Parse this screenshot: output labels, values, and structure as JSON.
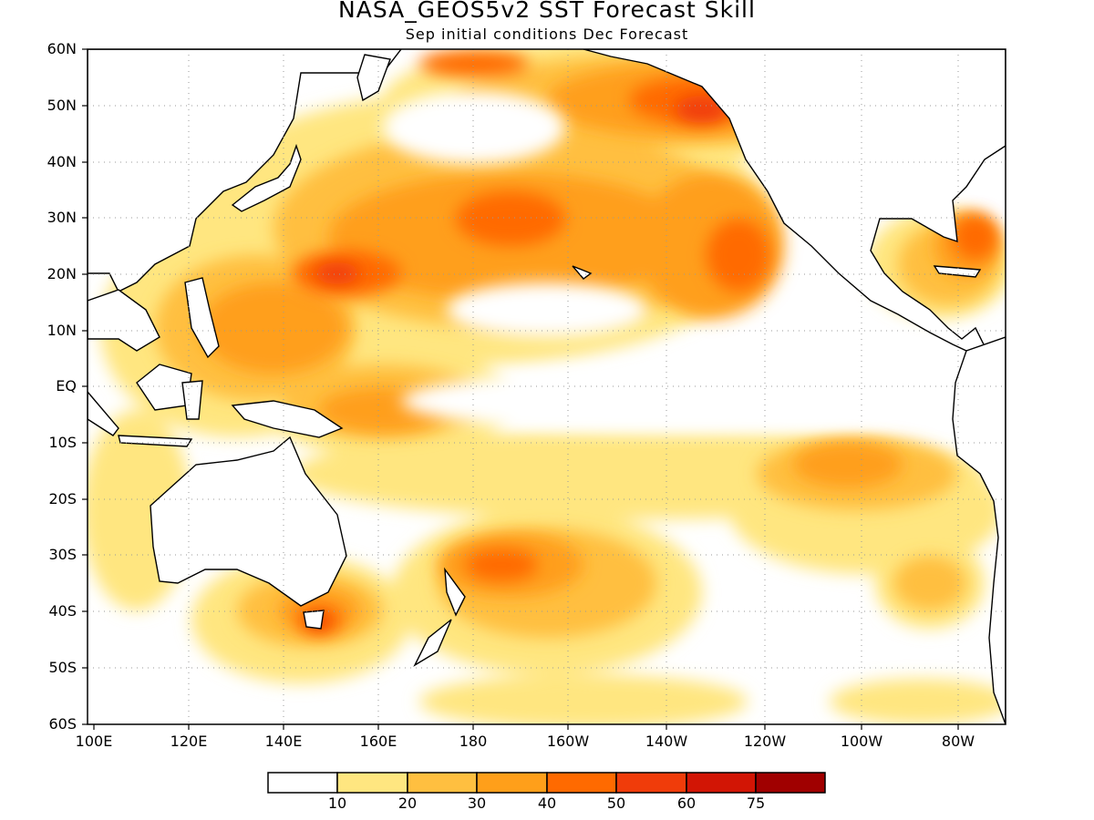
{
  "title": "NASA_GEOS5v2  SST Forecast Skill",
  "subtitle": "Sep initial conditions  Dec Forecast",
  "lat_labels": [
    "60N",
    "50N",
    "40N",
    "30N",
    "20N",
    "10N",
    "EQ",
    "10S",
    "20S",
    "30S",
    "40S",
    "50S",
    "60S"
  ],
  "lon_labels": [
    "100E",
    "120E",
    "140E",
    "160E",
    "180",
    "160W",
    "140W",
    "120W",
    "100W",
    "80W"
  ],
  "colorbar": {
    "colors": [
      "#ffffff",
      "#ffe680",
      "#ffbf40",
      "#ff9f1a",
      "#ff6a00",
      "#f03c0a",
      "#d21505",
      "#a00000"
    ],
    "labels": [
      "10",
      "20",
      "30",
      "40",
      "50",
      "60",
      "75"
    ]
  },
  "colors": {
    "land_outline": "#000000",
    "grid": "#9a9a9a"
  }
}
